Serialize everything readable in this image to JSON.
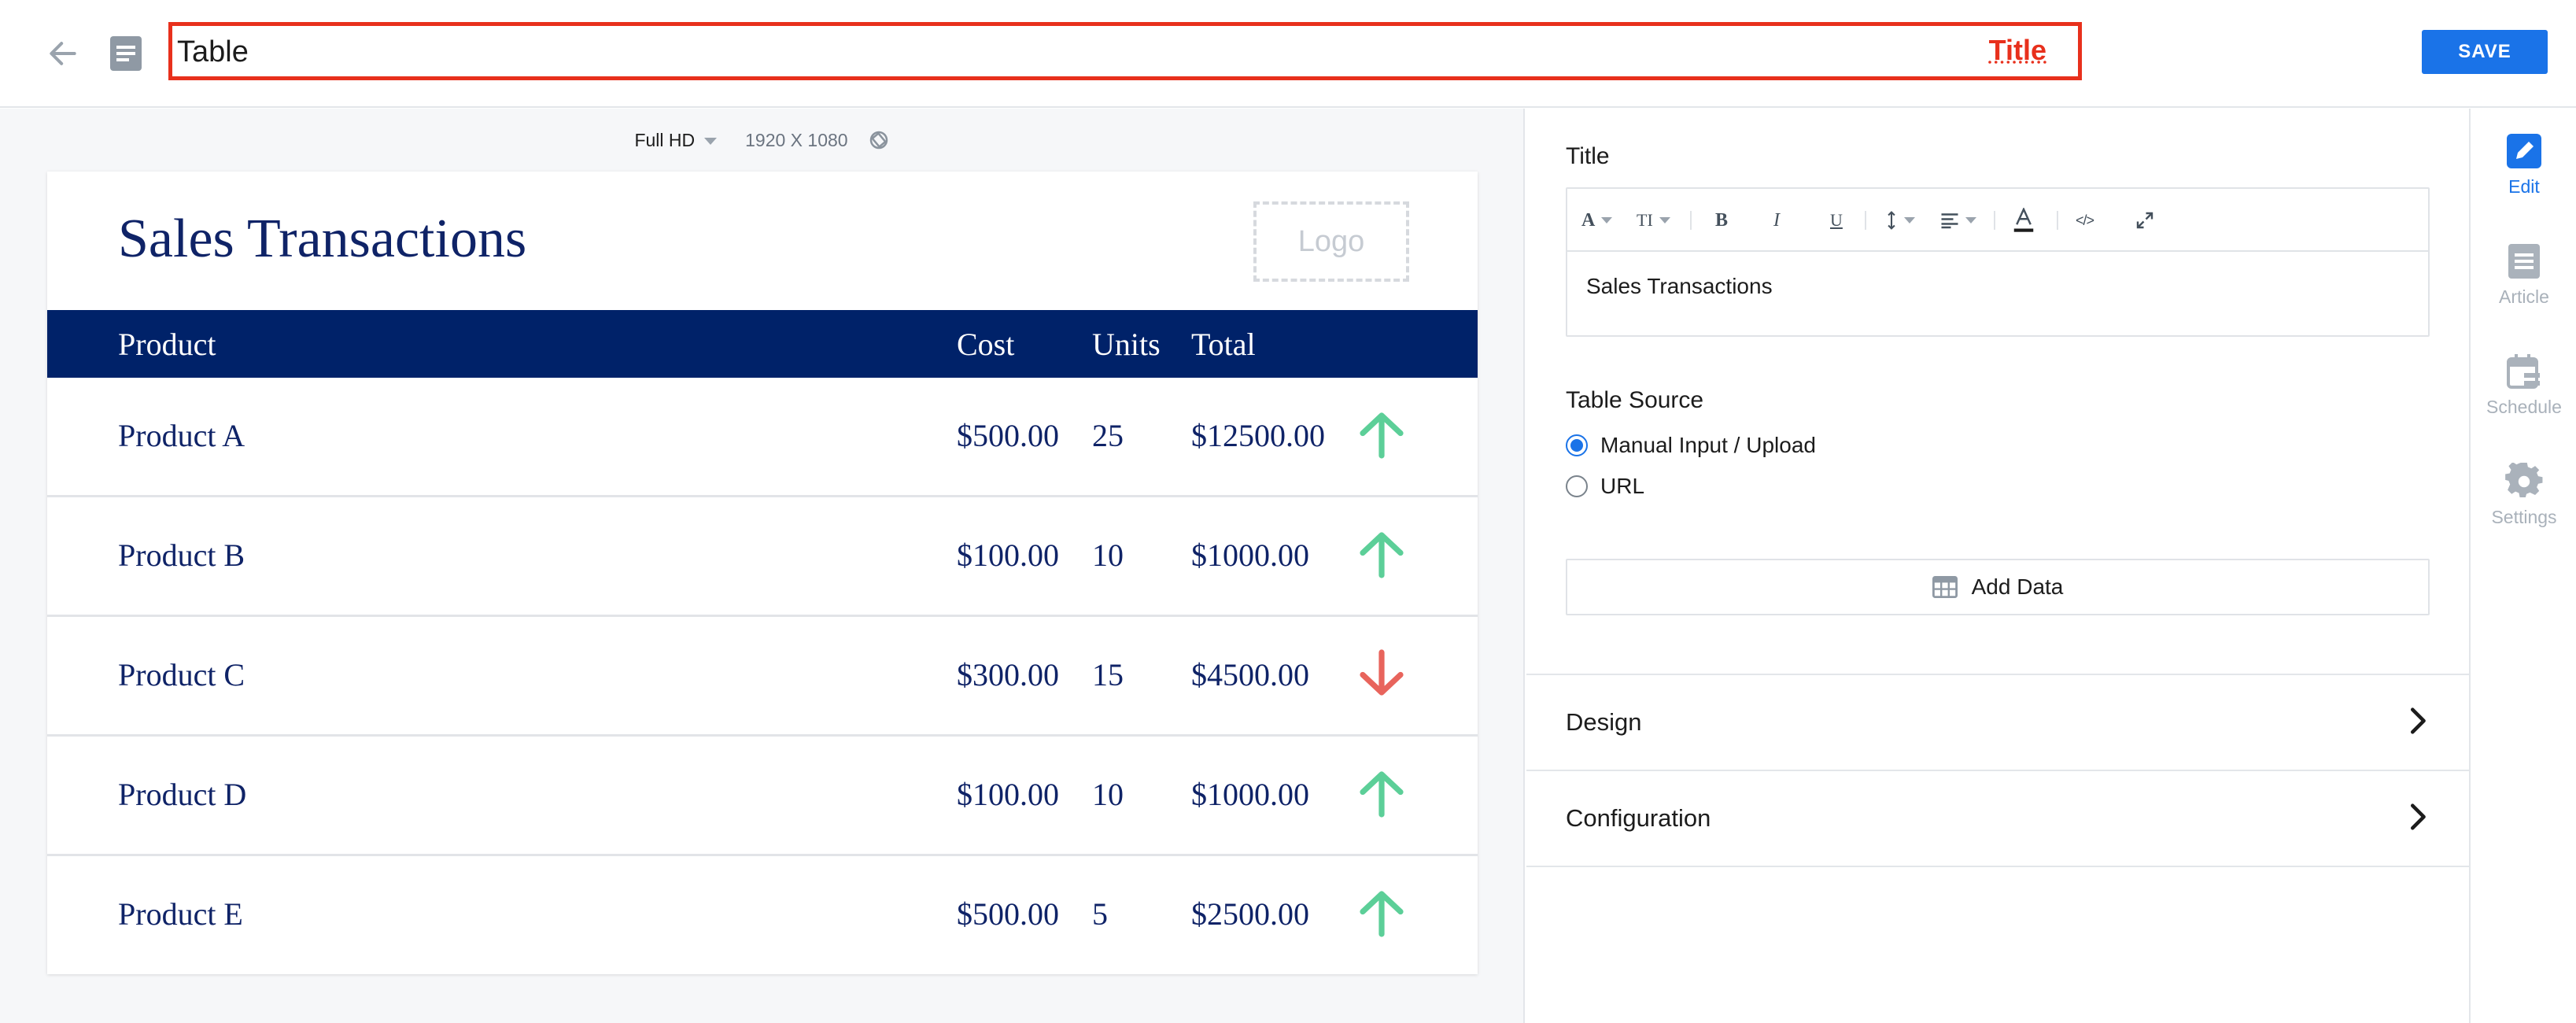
{
  "header": {
    "title_value": "Table",
    "title_tag": "Title",
    "save_label": "SAVE"
  },
  "preview": {
    "resolution": "Full HD",
    "dimensions": "1920 X 1080"
  },
  "table": {
    "title": "Sales Transactions",
    "logo_placeholder": "Logo",
    "columns": [
      "Product",
      "Cost",
      "Units",
      "Total"
    ],
    "rows": [
      {
        "product": "Product A",
        "cost": "$500.00",
        "units": "25",
        "total": "$12500.00",
        "trend": "up"
      },
      {
        "product": "Product B",
        "cost": "$100.00",
        "units": "10",
        "total": "$1000.00",
        "trend": "up"
      },
      {
        "product": "Product C",
        "cost": "$300.00",
        "units": "15",
        "total": "$4500.00",
        "trend": "down"
      },
      {
        "product": "Product D",
        "cost": "$100.00",
        "units": "10",
        "total": "$1000.00",
        "trend": "up"
      },
      {
        "product": "Product E",
        "cost": "$500.00",
        "units": "5",
        "total": "$2500.00",
        "trend": "up"
      }
    ],
    "colors": {
      "header_bg": "#002269",
      "text": "#0f2367",
      "up": "#5ccf98",
      "down": "#e8645c"
    }
  },
  "panel": {
    "title_label": "Title",
    "editor_text": "Sales Transactions",
    "toolbar": [
      "font-color-dropdown",
      "text-size-dropdown",
      "bold",
      "italic",
      "underline",
      "line-height-dropdown",
      "align-dropdown",
      "text-color",
      "code",
      "expand"
    ],
    "source_label": "Table Source",
    "source_options": [
      "Manual Input / Upload",
      "URL"
    ],
    "source_selected": "Manual Input / Upload",
    "add_data_label": "Add Data",
    "sections": [
      "Design",
      "Configuration"
    ]
  },
  "rail": {
    "items": [
      {
        "label": "Edit",
        "icon": "pencil-icon",
        "active": true
      },
      {
        "label": "Article",
        "icon": "article-icon",
        "active": false
      },
      {
        "label": "Schedule",
        "icon": "schedule-icon",
        "active": false
      },
      {
        "label": "Settings",
        "icon": "gear-icon",
        "active": false
      }
    ]
  },
  "accent": "#1a73e8",
  "highlight": "#e8301c"
}
